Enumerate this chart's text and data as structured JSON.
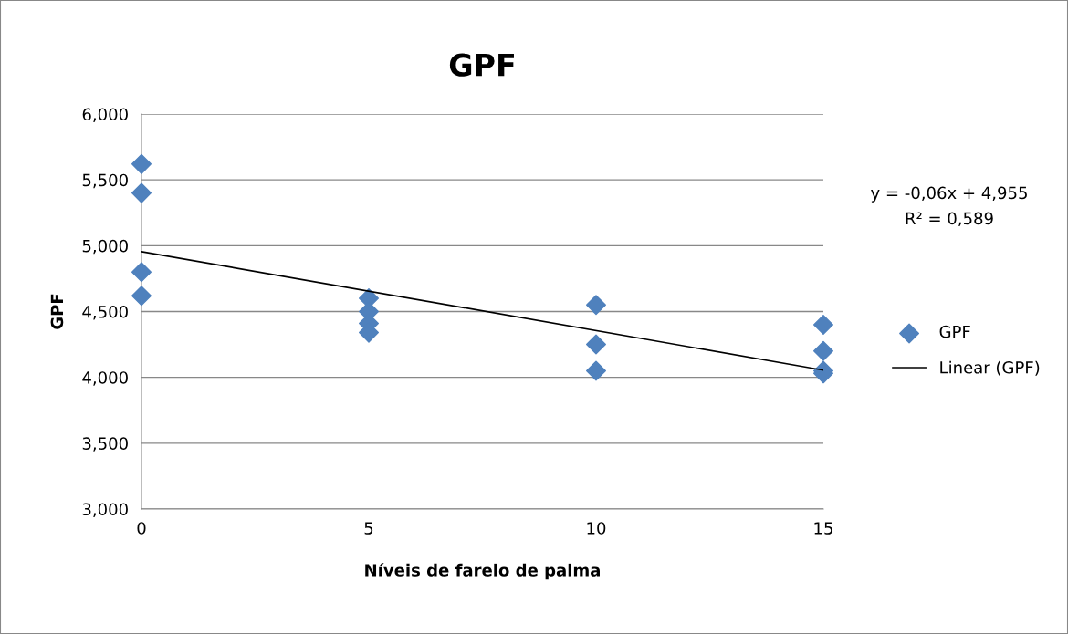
{
  "chart_data": {
    "type": "scatter",
    "title": "GPF",
    "xlabel": "Níveis de farelo de palma",
    "ylabel": "GPF",
    "xlim": [
      0,
      15
    ],
    "xticks": [
      0,
      5,
      10,
      15
    ],
    "ylim": [
      3,
      6
    ],
    "yticks": [
      {
        "value": 3,
        "label": "3,000"
      },
      {
        "value": 3.5,
        "label": "3,500"
      },
      {
        "value": 4,
        "label": "4,000"
      },
      {
        "value": 4.5,
        "label": "4,500"
      },
      {
        "value": 5,
        "label": "5,000"
      },
      {
        "value": 5.5,
        "label": "5,500"
      },
      {
        "value": 6,
        "label": "6,000"
      }
    ],
    "grid": "y",
    "legend": "right",
    "series": [
      {
        "name": "GPF",
        "marker": "diamond",
        "color": "#4f81bd",
        "x": [
          0,
          0,
          0,
          0,
          5,
          5,
          5,
          5,
          10,
          10,
          10,
          15,
          15,
          15,
          15
        ],
        "values": [
          5.62,
          5.4,
          4.8,
          4.62,
          4.6,
          4.5,
          4.41,
          4.34,
          4.55,
          4.25,
          4.05,
          4.4,
          4.2,
          4.05,
          4.03
        ]
      },
      {
        "name": "Linear (GPF)",
        "type": "line",
        "marker": "none",
        "color": "#000000",
        "x": [
          0,
          15
        ],
        "values": [
          4.955,
          4.055
        ]
      }
    ],
    "annotations": [
      "y = -0,06x + 4,955",
      "R² = 0,589"
    ]
  }
}
